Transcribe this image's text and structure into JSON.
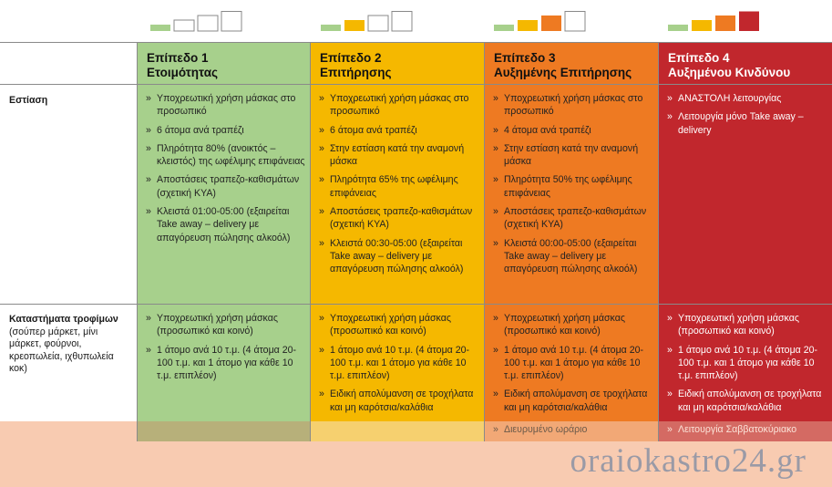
{
  "colors": {
    "level1": "#a7d08c",
    "level2": "#f5b800",
    "level3": "#ee7a22",
    "level4": "#c1272d",
    "bottom_band": "#f8cbb1"
  },
  "bullet": "»",
  "levels": [
    {
      "title_line1": "Επίπεδο 1",
      "title_line2": "Ετοιμότητας"
    },
    {
      "title_line1": "Επίπεδο 2",
      "title_line2": "Επιτήρησης"
    },
    {
      "title_line1": "Επίπεδο 3",
      "title_line2": "Αυξημένης Επιτήρησης"
    },
    {
      "title_line1": "Επίπεδο 4",
      "title_line2": "Αυξημένου Κινδύνου"
    }
  ],
  "rows": [
    {
      "title": "Εστίαση",
      "subtitle": "",
      "cells": [
        [
          "Υποχρεωτική χρήση μάσκας στο προσωπικό",
          "6 άτομα ανά τραπέζι",
          "Πληρότητα 80% (ανοικτός – κλειστός) της ωφέλιμης επιφάνειας",
          "Αποστάσεις τραπεζο-καθισμάτων (σχετική ΚΥΑ)",
          "Κλειστά 01:00-05:00 (εξαιρείται Take away – delivery με απαγόρευση πώλησης αλκοόλ)"
        ],
        [
          "Υποχρεωτική χρήση μάσκας στο προσωπικό",
          "6 άτομα ανά τραπέζι",
          "Στην εστίαση κατά την αναμονή μάσκα",
          "Πληρότητα 65% της ωφέλιμης επιφάνειας",
          "Αποστάσεις τραπεζο-καθισμάτων (σχετική ΚΥΑ)",
          "Κλειστά 00:30-05:00 (εξαιρείται Take away – delivery με απαγόρευση πώλησης αλκοόλ)"
        ],
        [
          "Υποχρεωτική χρήση μάσκας στο προσωπικό",
          "4 άτομα ανά τραπέζι",
          "Στην εστίαση κατά την αναμονή μάσκα",
          "Πληρότητα 50% της ωφέλιμης επιφάνειας",
          "Αποστάσεις τραπεζο-καθισμάτων (σχετική ΚΥΑ)",
          "Κλειστά 00:00-05:00 (εξαιρείται Take away – delivery με απαγόρευση πώλησης αλκοόλ)"
        ],
        [
          "ΑΝΑΣΤΟΛΗ λειτουργίας",
          "Λειτουργία μόνο Take away – delivery"
        ]
      ]
    },
    {
      "title": "Καταστήματα τροφίμων",
      "subtitle": "(σούπερ μάρκετ, μίνι μάρκετ, φούρνοι, κρεοπωλεία, ιχθυπωλεία κοκ)",
      "cells": [
        [
          "Υποχρεωτική χρήση μάσκας (προσωπικό και κοινό)",
          "1 άτομο ανά 10 τ.μ. (4 άτομα 20-100 τ.μ. και 1 άτομο για κάθε 10 τ.μ. επιπλέον)"
        ],
        [
          "Υποχρεωτική χρήση μάσκας (προσωπικό και κοινό)",
          "1 άτομο ανά 10 τ.μ. (4 άτομα 20-100 τ.μ. και 1 άτομο για κάθε 10 τ.μ. επιπλέον)",
          "Ειδική απολύμανση σε τροχήλατα και μη καρότσια/καλάθια"
        ],
        [
          "Υποχρεωτική χρήση μάσκας (προσωπικό και κοινό)",
          "1 άτομο ανά 10 τ.μ. (4 άτομα 20-100 τ.μ. και 1 άτομο για κάθε 10 τ.μ. επιπλέον)",
          "Ειδική απολύμανση σε τροχήλατα και μη καρότσια/καλάθια"
        ],
        [
          "Υποχρεωτική χρήση μάσκας (προσωπικό και κοινό)",
          "1 άτομο ανά 10 τ.μ. (4 άτομα 20-100 τ.μ. και 1 άτομο για κάθε 10 τ.μ. επιπλέον)",
          "Ειδική απολύμανση σε τροχήλατα και μη καρότσια/καλάθια"
        ]
      ]
    }
  ],
  "partial_row": [
    "",
    "",
    "Διευρυμένο ωράριο",
    "Λειτουργία Σαββατοκύριακο"
  ],
  "watermark": "oraiokastro24.gr"
}
